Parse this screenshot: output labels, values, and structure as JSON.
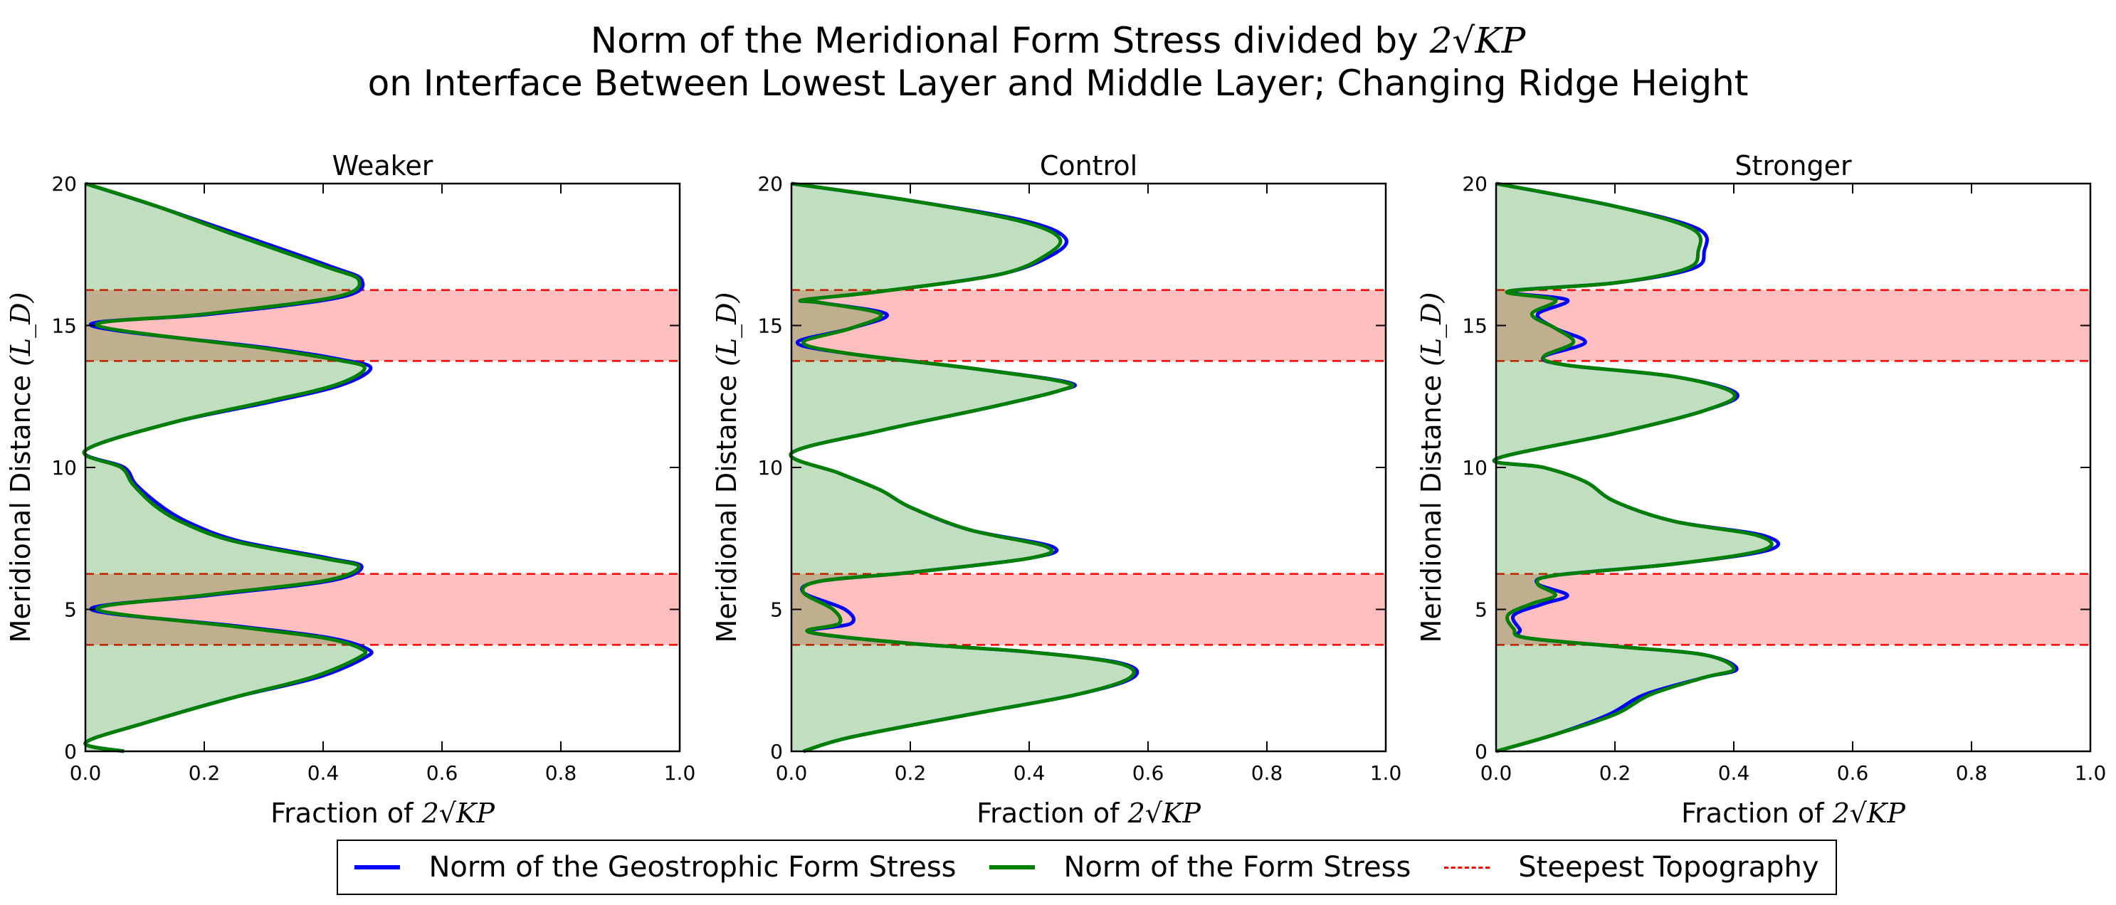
{
  "figure": {
    "title_line1_text": "Norm of the Meridional Form Stress divided by",
    "title_line1_math": "2√KP",
    "title_line2": "on Interface Between Lowest Layer and Middle Layer; Changing Ridge Height"
  },
  "legend": {
    "items": [
      {
        "label": "Norm of the Geostrophic Form Stress",
        "color": "#0000ff",
        "style": "solid"
      },
      {
        "label": "Norm of the Form Stress",
        "color": "#008000",
        "style": "solid"
      },
      {
        "label": "Steepest Topography",
        "color": "#ff0000",
        "style": "dashed"
      }
    ]
  },
  "chart_data": [
    {
      "type": "line",
      "title": "Weaker",
      "xlabel_text": "Fraction of",
      "xlabel_math": "2√KP",
      "ylabel_text": "Meridional Distance",
      "ylabel_math": "(L_D)",
      "xlim": [
        0,
        1
      ],
      "ylim": [
        0,
        20
      ],
      "xticks": [
        "0.0",
        "0.2",
        "0.4",
        "0.6",
        "0.8",
        "1.0"
      ],
      "yticks": [
        "0",
        "5",
        "10",
        "15",
        "20"
      ],
      "xtick_values": [
        0,
        0.2,
        0.4,
        0.6,
        0.8,
        1.0
      ],
      "ytick_values": [
        0,
        5,
        10,
        15,
        20
      ],
      "bands": [
        [
          3.75,
          6.25
        ],
        [
          13.75,
          16.25
        ]
      ],
      "series": [
        {
          "name": "Norm of the Form Stress",
          "color": "#008000",
          "points": [
            [
              0.065,
              0
            ],
            [
              0.0,
              0.3
            ],
            [
              0.1,
              1.0
            ],
            [
              0.25,
              1.9
            ],
            [
              0.38,
              2.6
            ],
            [
              0.46,
              3.3
            ],
            [
              0.465,
              3.6
            ],
            [
              0.4,
              4.0
            ],
            [
              0.25,
              4.4
            ],
            [
              0.02,
              5.0
            ],
            [
              0.2,
              5.5
            ],
            [
              0.4,
              6.0
            ],
            [
              0.46,
              6.5
            ],
            [
              0.4,
              6.8
            ],
            [
              0.25,
              7.4
            ],
            [
              0.17,
              8.0
            ],
            [
              0.12,
              8.6
            ],
            [
              0.08,
              9.4
            ],
            [
              0.06,
              10.0
            ],
            [
              0.0,
              10.6
            ],
            [
              0.15,
              11.6
            ],
            [
              0.3,
              12.3
            ],
            [
              0.42,
              12.9
            ],
            [
              0.47,
              13.5
            ],
            [
              0.42,
              13.8
            ],
            [
              0.3,
              14.2
            ],
            [
              0.02,
              15.0
            ],
            [
              0.2,
              15.4
            ],
            [
              0.42,
              16.0
            ],
            [
              0.46,
              16.6
            ],
            [
              0.4,
              17.1
            ],
            [
              0.25,
              18.2
            ],
            [
              0.12,
              19.2
            ],
            [
              0.0,
              20
            ]
          ]
        },
        {
          "name": "Norm of the Geostrophic Form Stress",
          "color": "#0000ff",
          "points": [
            [
              0.065,
              0
            ],
            [
              0.0,
              0.3
            ],
            [
              0.1,
              1.0
            ],
            [
              0.25,
              1.9
            ],
            [
              0.39,
              2.6
            ],
            [
              0.47,
              3.3
            ],
            [
              0.475,
              3.6
            ],
            [
              0.41,
              4.0
            ],
            [
              0.26,
              4.4
            ],
            [
              0.01,
              5.0
            ],
            [
              0.21,
              5.5
            ],
            [
              0.41,
              6.0
            ],
            [
              0.465,
              6.5
            ],
            [
              0.41,
              6.8
            ],
            [
              0.26,
              7.4
            ],
            [
              0.18,
              8.0
            ],
            [
              0.13,
              8.6
            ],
            [
              0.085,
              9.4
            ],
            [
              0.065,
              10.0
            ],
            [
              0.0,
              10.6
            ],
            [
              0.15,
              11.6
            ],
            [
              0.31,
              12.3
            ],
            [
              0.43,
              12.9
            ],
            [
              0.48,
              13.5
            ],
            [
              0.43,
              13.8
            ],
            [
              0.31,
              14.2
            ],
            [
              0.01,
              15.0
            ],
            [
              0.21,
              15.4
            ],
            [
              0.43,
              16.0
            ],
            [
              0.465,
              16.6
            ],
            [
              0.41,
              17.1
            ],
            [
              0.26,
              18.2
            ],
            [
              0.12,
              19.2
            ],
            [
              0.0,
              20
            ]
          ]
        }
      ]
    },
    {
      "type": "line",
      "title": "Control",
      "xlabel_text": "Fraction of",
      "xlabel_math": "2√KP",
      "ylabel_text": "Meridional Distance",
      "ylabel_math": "(L_D)",
      "xlim": [
        0,
        1
      ],
      "ylim": [
        0,
        20
      ],
      "xticks": [
        "0.0",
        "0.2",
        "0.4",
        "0.6",
        "0.8",
        "1.0"
      ],
      "yticks": [
        "0",
        "5",
        "10",
        "15",
        "20"
      ],
      "xtick_values": [
        0,
        0.2,
        0.4,
        0.6,
        0.8,
        1.0
      ],
      "ytick_values": [
        0,
        5,
        10,
        15,
        20
      ],
      "bands": [
        [
          3.75,
          6.25
        ],
        [
          13.75,
          16.25
        ]
      ],
      "series": [
        {
          "name": "Norm of the Form Stress",
          "color": "#008000",
          "points": [
            [
              0.02,
              0
            ],
            [
              0.1,
              0.5
            ],
            [
              0.3,
              1.3
            ],
            [
              0.48,
              2.0
            ],
            [
              0.57,
              2.6
            ],
            [
              0.55,
              3.1
            ],
            [
              0.4,
              3.5
            ],
            [
              0.2,
              3.8
            ],
            [
              0.03,
              4.2
            ],
            [
              0.08,
              4.5
            ],
            [
              0.07,
              5.0
            ],
            [
              0.02,
              5.6
            ],
            [
              0.05,
              6.0
            ],
            [
              0.2,
              6.3
            ],
            [
              0.4,
              6.8
            ],
            [
              0.43,
              7.2
            ],
            [
              0.3,
              7.8
            ],
            [
              0.2,
              8.6
            ],
            [
              0.15,
              9.2
            ],
            [
              0.08,
              9.8
            ],
            [
              0.0,
              10.5
            ],
            [
              0.15,
              11.3
            ],
            [
              0.33,
              12.1
            ],
            [
              0.45,
              12.7
            ],
            [
              0.46,
              13.0
            ],
            [
              0.3,
              13.5
            ],
            [
              0.1,
              14.0
            ],
            [
              0.02,
              14.4
            ],
            [
              0.1,
              14.9
            ],
            [
              0.15,
              15.4
            ],
            [
              0.05,
              15.8
            ],
            [
              0.02,
              15.9
            ],
            [
              0.15,
              16.2
            ],
            [
              0.35,
              16.8
            ],
            [
              0.43,
              17.5
            ],
            [
              0.45,
              18.1
            ],
            [
              0.38,
              18.7
            ],
            [
              0.2,
              19.4
            ],
            [
              0.0,
              20
            ]
          ]
        },
        {
          "name": "Norm of the Geostrophic Form Stress",
          "color": "#0000ff",
          "points": [
            [
              0.02,
              0
            ],
            [
              0.1,
              0.5
            ],
            [
              0.3,
              1.3
            ],
            [
              0.48,
              2.0
            ],
            [
              0.575,
              2.6
            ],
            [
              0.555,
              3.1
            ],
            [
              0.4,
              3.5
            ],
            [
              0.2,
              3.8
            ],
            [
              0.03,
              4.2
            ],
            [
              0.1,
              4.5
            ],
            [
              0.09,
              5.0
            ],
            [
              0.02,
              5.6
            ],
            [
              0.05,
              6.0
            ],
            [
              0.2,
              6.3
            ],
            [
              0.4,
              6.8
            ],
            [
              0.44,
              7.2
            ],
            [
              0.3,
              7.8
            ],
            [
              0.2,
              8.6
            ],
            [
              0.15,
              9.2
            ],
            [
              0.08,
              9.8
            ],
            [
              0.0,
              10.5
            ],
            [
              0.15,
              11.3
            ],
            [
              0.33,
              12.1
            ],
            [
              0.45,
              12.7
            ],
            [
              0.465,
              13.0
            ],
            [
              0.3,
              13.5
            ],
            [
              0.1,
              14.0
            ],
            [
              0.01,
              14.4
            ],
            [
              0.1,
              14.9
            ],
            [
              0.16,
              15.4
            ],
            [
              0.05,
              15.8
            ],
            [
              0.02,
              15.9
            ],
            [
              0.15,
              16.2
            ],
            [
              0.35,
              16.8
            ],
            [
              0.44,
              17.5
            ],
            [
              0.46,
              18.1
            ],
            [
              0.39,
              18.7
            ],
            [
              0.2,
              19.4
            ],
            [
              0.0,
              20
            ]
          ]
        }
      ]
    },
    {
      "type": "line",
      "title": "Stronger",
      "xlabel_text": "Fraction of",
      "xlabel_math": "2√KP",
      "ylabel_text": "Meridional Distance",
      "ylabel_math": "(L_D)",
      "xlim": [
        0,
        1
      ],
      "ylim": [
        0,
        20
      ],
      "xticks": [
        "0.0",
        "0.2",
        "0.4",
        "0.6",
        "0.8",
        "1.0"
      ],
      "yticks": [
        "0",
        "5",
        "10",
        "15",
        "20"
      ],
      "xtick_values": [
        0,
        0.2,
        0.4,
        0.6,
        0.8,
        1.0
      ],
      "ytick_values": [
        0,
        5,
        10,
        15,
        20
      ],
      "bands": [
        [
          3.75,
          6.25
        ],
        [
          13.75,
          16.25
        ]
      ],
      "series": [
        {
          "name": "Norm of the Form Stress",
          "color": "#008000",
          "points": [
            [
              0.0,
              0
            ],
            [
              0.1,
              0.6
            ],
            [
              0.2,
              1.3
            ],
            [
              0.26,
              2.0
            ],
            [
              0.35,
              2.6
            ],
            [
              0.4,
              2.9
            ],
            [
              0.35,
              3.4
            ],
            [
              0.2,
              3.7
            ],
            [
              0.05,
              4.0
            ],
            [
              0.03,
              4.3
            ],
            [
              0.02,
              4.8
            ],
            [
              0.06,
              5.2
            ],
            [
              0.1,
              5.5
            ],
            [
              0.07,
              5.9
            ],
            [
              0.1,
              6.2
            ],
            [
              0.3,
              6.6
            ],
            [
              0.45,
              7.1
            ],
            [
              0.44,
              7.6
            ],
            [
              0.3,
              8.1
            ],
            [
              0.2,
              8.8
            ],
            [
              0.15,
              9.5
            ],
            [
              0.08,
              10.0
            ],
            [
              0.0,
              10.3
            ],
            [
              0.2,
              11.2
            ],
            [
              0.35,
              12.0
            ],
            [
              0.4,
              12.6
            ],
            [
              0.3,
              13.2
            ],
            [
              0.12,
              13.6
            ],
            [
              0.08,
              13.9
            ],
            [
              0.13,
              14.4
            ],
            [
              0.1,
              14.9
            ],
            [
              0.06,
              15.4
            ],
            [
              0.1,
              15.9
            ],
            [
              0.02,
              16.2
            ],
            [
              0.2,
              16.5
            ],
            [
              0.32,
              17.0
            ],
            [
              0.34,
              17.6
            ],
            [
              0.33,
              18.4
            ],
            [
              0.2,
              19.2
            ],
            [
              0.0,
              20
            ]
          ]
        },
        {
          "name": "Norm of the Geostrophic Form Stress",
          "color": "#0000ff",
          "points": [
            [
              0.0,
              0
            ],
            [
              0.1,
              0.6
            ],
            [
              0.19,
              1.3
            ],
            [
              0.25,
              2.0
            ],
            [
              0.35,
              2.6
            ],
            [
              0.405,
              2.9
            ],
            [
              0.35,
              3.4
            ],
            [
              0.2,
              3.7
            ],
            [
              0.05,
              4.0
            ],
            [
              0.04,
              4.3
            ],
            [
              0.03,
              4.8
            ],
            [
              0.08,
              5.2
            ],
            [
              0.12,
              5.5
            ],
            [
              0.07,
              5.9
            ],
            [
              0.1,
              6.2
            ],
            [
              0.3,
              6.6
            ],
            [
              0.46,
              7.1
            ],
            [
              0.45,
              7.6
            ],
            [
              0.3,
              8.1
            ],
            [
              0.2,
              8.8
            ],
            [
              0.15,
              9.5
            ],
            [
              0.08,
              10.0
            ],
            [
              0.0,
              10.3
            ],
            [
              0.2,
              11.2
            ],
            [
              0.35,
              12.0
            ],
            [
              0.405,
              12.6
            ],
            [
              0.3,
              13.2
            ],
            [
              0.12,
              13.6
            ],
            [
              0.08,
              13.9
            ],
            [
              0.15,
              14.4
            ],
            [
              0.1,
              14.9
            ],
            [
              0.07,
              15.4
            ],
            [
              0.12,
              15.9
            ],
            [
              0.02,
              16.2
            ],
            [
              0.2,
              16.5
            ],
            [
              0.33,
              17.0
            ],
            [
              0.35,
              17.6
            ],
            [
              0.34,
              18.4
            ],
            [
              0.2,
              19.2
            ],
            [
              0.0,
              20
            ]
          ]
        }
      ]
    }
  ]
}
